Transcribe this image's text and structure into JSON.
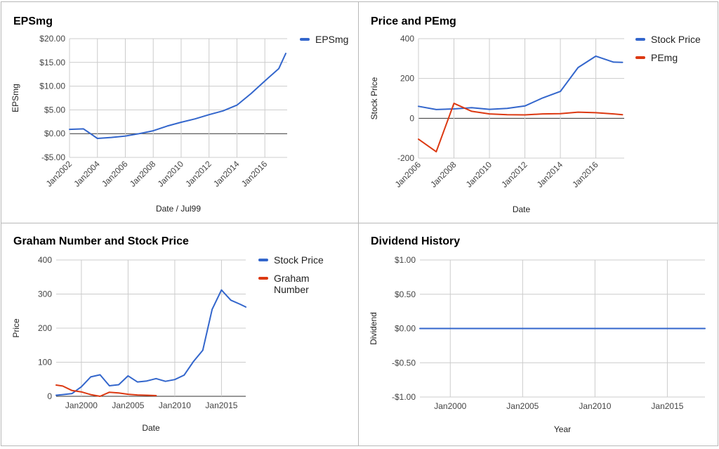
{
  "colors": {
    "blue": "#3366cc",
    "red": "#dc3912",
    "grid": "#cccccc",
    "zero": "#333333"
  },
  "chart_data": [
    {
      "id": "eps",
      "type": "line",
      "title": "EPSmg",
      "xlabel": "Date / Jul99",
      "ylabel": "EPSmg",
      "xlim": [
        2002,
        2017.6
      ],
      "ylim": [
        -5,
        20
      ],
      "yticks": [
        20,
        15,
        10,
        5,
        0,
        -5
      ],
      "yticklabels": [
        "$20.00",
        "$15.00",
        "$10.00",
        "$5.00",
        "$0.00",
        "-$5.00"
      ],
      "xticks": [
        2002,
        2004,
        2006,
        2008,
        2010,
        2012,
        2014,
        2016
      ],
      "xticklabels": [
        "Jan2002",
        "Jan2004",
        "Jan2006",
        "Jan2008",
        "Jan2010",
        "Jan2012",
        "Jan2014",
        "Jan2016"
      ],
      "legend": "right",
      "series": [
        {
          "name": "EPSmg",
          "color": "#3366cc",
          "x": [
            2002,
            2003,
            2004,
            2005,
            2006,
            2007,
            2008,
            2009,
            2010,
            2011,
            2012,
            2013,
            2014,
            2015,
            2016,
            2017,
            2017.5
          ],
          "y": [
            0.9,
            1.0,
            -1.0,
            -0.8,
            -0.5,
            0.0,
            0.6,
            1.6,
            2.4,
            3.1,
            4.0,
            4.8,
            6.0,
            8.4,
            11.1,
            13.7,
            16.9
          ]
        }
      ]
    },
    {
      "id": "pe",
      "type": "line",
      "title": "Price and PEmg",
      "xlabel": "Date",
      "ylabel": "Stock Price",
      "xlim": [
        2006,
        2017.6
      ],
      "ylim": [
        -200,
        400
      ],
      "yticks": [
        400,
        200,
        0,
        -200
      ],
      "yticklabels": [
        "400",
        "200",
        "0",
        "-200"
      ],
      "xticks": [
        2006,
        2008,
        2010,
        2012,
        2014,
        2016
      ],
      "xticklabels": [
        "Jan2006",
        "Jan2008",
        "Jan2010",
        "Jan2012",
        "Jan2014",
        "Jan2016"
      ],
      "legend": "right",
      "series": [
        {
          "name": "Stock Price",
          "color": "#3366cc",
          "x": [
            2006,
            2007,
            2008,
            2009,
            2010,
            2011,
            2012,
            2013,
            2014,
            2015,
            2016,
            2017,
            2017.5
          ],
          "y": [
            60,
            44,
            47,
            53,
            45,
            50,
            62,
            102,
            135,
            255,
            312,
            282,
            281
          ]
        },
        {
          "name": "PEmg",
          "color": "#dc3912",
          "x": [
            2006,
            2007,
            2008,
            2009,
            2010,
            2011,
            2012,
            2013,
            2014,
            2015,
            2016,
            2017,
            2017.5
          ],
          "y": [
            -105,
            -168,
            75,
            35,
            22,
            18,
            17,
            22,
            23,
            31,
            28,
            22,
            18
          ]
        }
      ]
    },
    {
      "id": "graham",
      "type": "line",
      "title": "Graham Number and Stock Price",
      "xlabel": "Date",
      "ylabel": "Price",
      "xlim": [
        1997.3,
        2017.6
      ],
      "ylim": [
        0,
        400
      ],
      "yticks": [
        400,
        300,
        200,
        100,
        0
      ],
      "yticklabels": [
        "400",
        "300",
        "200",
        "100",
        "0"
      ],
      "xticks": [
        2000,
        2005,
        2010,
        2015
      ],
      "xticklabels": [
        "Jan2000",
        "Jan2005",
        "Jan2010",
        "Jan2015"
      ],
      "legend": "right",
      "series": [
        {
          "name": "Stock Price",
          "color": "#3366cc",
          "x": [
            1997.3,
            1998,
            1999,
            2000,
            2001,
            2002,
            2003,
            2004,
            2005,
            2006,
            2007,
            2008,
            2009,
            2010,
            2011,
            2012,
            2013,
            2014,
            2015,
            2016,
            2017,
            2017.6
          ],
          "y": [
            3,
            5,
            8,
            28,
            57,
            63,
            31,
            34,
            60,
            42,
            45,
            52,
            44,
            49,
            62,
            102,
            135,
            255,
            312,
            282,
            270,
            262
          ]
        },
        {
          "name": "Graham Number",
          "color": "#dc3912",
          "x": [
            1997.3,
            1998,
            1999,
            2000,
            2001,
            2002,
            2003,
            2004,
            2005,
            2006,
            2007,
            2008
          ],
          "y": [
            33,
            30,
            17,
            13,
            5,
            0,
            12,
            10,
            6,
            4,
            3,
            2
          ]
        }
      ]
    },
    {
      "id": "dividend",
      "type": "line",
      "title": "Dividend History",
      "xlabel": "Year",
      "ylabel": "Dividend",
      "xlim": [
        1997.9,
        2017.6
      ],
      "ylim": [
        -1,
        1
      ],
      "yticks": [
        1,
        0.5,
        0,
        -0.5,
        -1
      ],
      "yticklabels": [
        "$1.00",
        "$0.50",
        "$0.00",
        "-$0.50",
        "-$1.00"
      ],
      "xticks": [
        2000,
        2005,
        2010,
        2015
      ],
      "xticklabels": [
        "Jan2000",
        "Jan2005",
        "Jan2010",
        "Jan2015"
      ],
      "legend": "none",
      "series": [
        {
          "color": "#3366cc",
          "x": [
            1997.9,
            2017.6
          ],
          "y": [
            0,
            0
          ]
        }
      ]
    }
  ]
}
